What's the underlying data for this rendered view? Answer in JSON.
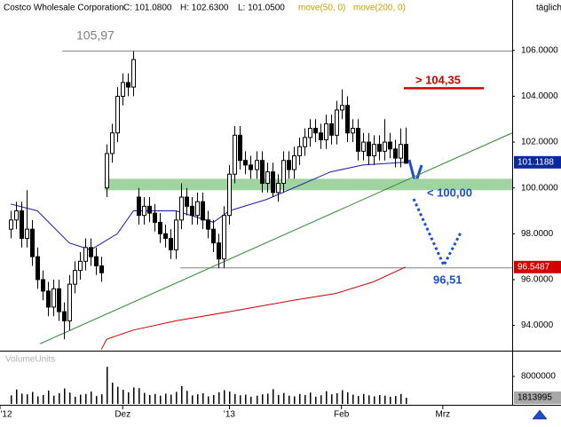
{
  "header": {
    "symbol": "Costco Wholesale Corporation",
    "close": "C: 101.0800",
    "high": "H: 102.6300",
    "low": "L: 101.0500",
    "period": "täglich"
  },
  "chart_data": [
    {
      "type": "candlestick",
      "x": [
        2,
        3,
        4,
        5,
        6,
        7,
        8,
        9,
        10,
        11,
        12,
        13,
        14,
        15,
        16,
        17,
        18,
        19,
        20,
        21,
        22,
        23,
        24,
        25,
        26,
        27,
        28,
        29,
        30,
        31,
        32,
        33,
        34,
        35,
        36,
        37,
        38,
        39,
        40,
        41,
        42,
        43,
        44,
        45,
        46,
        47,
        48,
        49,
        50,
        51,
        52,
        53,
        54,
        55,
        56,
        57,
        58,
        59,
        60,
        61,
        62,
        63,
        64,
        65,
        66,
        67,
        68,
        69,
        70,
        71,
        72,
        73,
        74,
        75,
        76
      ],
      "open": [
        98.2,
        98.6,
        99.0,
        97.8,
        98.2,
        97.0,
        96.0,
        95.5,
        94.8,
        95.6,
        94.6,
        94.2,
        95.8,
        96.4,
        96.8,
        97.4,
        97.0,
        96.6,
        100.0,
        101.5,
        102.4,
        104.0,
        104.6,
        104.4,
        99.6,
        98.8,
        99.2,
        98.9,
        98.5,
        98.0,
        97.8,
        97.3,
        98.6,
        99.6,
        99.2,
        98.8,
        99.4,
        98.6,
        98.2,
        97.6,
        96.9,
        98.8,
        100.6,
        102.3,
        101.2,
        101.0,
        100.8,
        101.2,
        100.2,
        100.7,
        99.8,
        100.2,
        101.2,
        100.8,
        101.4,
        101.8,
        102.2,
        102.6,
        102.4,
        102.1,
        102.8,
        102.3,
        103.4,
        103.6,
        102.4,
        102.6,
        101.6,
        102.0,
        101.4,
        101.9,
        101.6,
        102.0,
        101.7,
        101.3,
        101.9
      ],
      "high": [
        99.0,
        99.4,
        99.4,
        99.9,
        98.6,
        97.4,
        96.4,
        95.9,
        96.0,
        96.0,
        95.0,
        96.2,
        96.8,
        97.2,
        97.8,
        97.8,
        97.4,
        97.0,
        101.9,
        102.8,
        104.4,
        105.0,
        105.0,
        105.97,
        100.0,
        99.6,
        99.6,
        99.3,
        98.9,
        98.4,
        98.2,
        99.0,
        100.2,
        100.0,
        99.6,
        99.8,
        99.8,
        99.0,
        98.6,
        98.0,
        99.2,
        101.0,
        102.7,
        102.7,
        101.6,
        101.4,
        101.6,
        101.6,
        101.1,
        101.1,
        100.6,
        101.6,
        101.6,
        101.8,
        102.2,
        102.6,
        103.0,
        103.0,
        102.8,
        103.2,
        103.2,
        103.8,
        104.3,
        104.0,
        103.0,
        103.0,
        102.4,
        102.4,
        102.3,
        102.3,
        103.0,
        102.4,
        102.1,
        102.6,
        102.63
      ],
      "low": [
        97.8,
        98.2,
        97.4,
        97.4,
        96.6,
        95.6,
        95.1,
        94.4,
        94.4,
        94.2,
        93.4,
        93.8,
        95.4,
        96.0,
        96.4,
        96.6,
        96.2,
        95.9,
        99.6,
        101.1,
        102.0,
        103.6,
        104.0,
        104.0,
        98.4,
        98.4,
        98.5,
        98.1,
        97.6,
        97.4,
        96.9,
        96.9,
        98.2,
        98.8,
        98.4,
        98.4,
        98.2,
        97.8,
        97.2,
        96.5,
        96.5,
        98.4,
        100.2,
        100.8,
        100.6,
        100.4,
        100.4,
        99.8,
        99.8,
        99.6,
        99.4,
        99.8,
        100.4,
        100.4,
        101.0,
        101.4,
        101.8,
        102.0,
        101.7,
        101.7,
        101.9,
        101.9,
        103.0,
        102.0,
        102.0,
        101.2,
        101.2,
        101.0,
        101.0,
        101.2,
        101.2,
        101.3,
        100.9,
        100.9,
        101.05
      ],
      "close": [
        98.6,
        99.0,
        97.8,
        98.2,
        97.0,
        96.0,
        95.5,
        94.8,
        95.6,
        94.6,
        94.2,
        95.8,
        96.4,
        96.8,
        97.4,
        97.0,
        96.6,
        96.3,
        101.5,
        102.4,
        104.0,
        104.6,
        104.4,
        105.6,
        98.8,
        99.2,
        98.9,
        98.5,
        98.0,
        97.8,
        97.3,
        98.6,
        99.6,
        99.2,
        98.8,
        99.4,
        98.6,
        98.2,
        97.6,
        96.9,
        98.8,
        100.6,
        102.3,
        101.2,
        101.0,
        100.8,
        101.2,
        100.2,
        100.7,
        99.8,
        100.2,
        101.2,
        100.8,
        101.4,
        101.8,
        102.2,
        102.6,
        102.4,
        102.1,
        102.8,
        102.3,
        103.4,
        103.6,
        102.4,
        102.6,
        101.6,
        102.0,
        101.4,
        101.9,
        101.6,
        102.0,
        101.7,
        101.3,
        101.9,
        101.08
      ],
      "series": [
        {
          "name": "move(50, 0)",
          "color": "#1a1aa8",
          "x": [
            2,
            7,
            13,
            17,
            22,
            25,
            33,
            40,
            43,
            50,
            55,
            62,
            68,
            76
          ],
          "values": [
            99.3,
            99.0,
            97.6,
            97.3,
            98.0,
            99.0,
            99.0,
            98.5,
            99.0,
            99.5,
            100.0,
            100.7,
            101.0,
            101.1188
          ]
        },
        {
          "name": "move(200, 0)",
          "color": "#cc0000",
          "x": [
            19,
            20,
            25,
            33,
            43,
            55,
            63,
            70,
            76
          ],
          "values": [
            92.95,
            93.4,
            93.8,
            94.2,
            94.6,
            95.1,
            95.4,
            95.9,
            96.5487
          ]
        }
      ],
      "trendline": {
        "color": "#2e8b2e",
        "x": [
          7.5,
          96
        ],
        "values": [
          93.2,
          102.4
        ]
      },
      "levels": [
        {
          "value": 105.97,
          "label": "105,97",
          "color": "#808080",
          "x_from": 11.7
        },
        {
          "value": 104.35,
          "label": "> 104,35",
          "color": "#d40000",
          "x_from": 75.7,
          "x_to": 90.7
        },
        {
          "value": 96.51,
          "label": "96,51",
          "color": "#808080",
          "x_from": 33.8
        }
      ],
      "zone": {
        "range": [
          99.9,
          100.4
        ],
        "label": "< 100,00",
        "color": "#9fd39f",
        "x_from": 19.6
      },
      "xlim": [
        0,
        96
      ],
      "ylim": [
        92.9,
        108.2
      ],
      "xticks": [
        {
          "value": 0,
          "label": "'12"
        },
        {
          "value": 23,
          "label": "Dez"
        },
        {
          "value": 43,
          "label": "'13"
        },
        {
          "value": 64,
          "label": "Feb"
        },
        {
          "value": 83,
          "label": "Mrz"
        }
      ],
      "yticks": [
        {
          "value": 94,
          "label": "94.0000"
        },
        {
          "value": 96,
          "label": "96.0000"
        },
        {
          "value": 98,
          "label": "98.0000"
        },
        {
          "value": 100,
          "label": "100.0000"
        },
        {
          "value": 102,
          "label": "102.0000"
        },
        {
          "value": 104,
          "label": "104.0000"
        },
        {
          "value": 106,
          "label": "106.0000"
        }
      ]
    },
    {
      "type": "bar",
      "title": "VolumeUnits",
      "color": "#000000",
      "x": [
        2,
        3,
        4,
        5,
        6,
        7,
        8,
        9,
        10,
        11,
        12,
        13,
        14,
        15,
        16,
        17,
        18,
        19,
        20,
        21,
        22,
        23,
        24,
        25,
        26,
        27,
        28,
        29,
        30,
        31,
        32,
        33,
        34,
        35,
        36,
        37,
        38,
        39,
        40,
        41,
        42,
        43,
        44,
        45,
        46,
        47,
        48,
        49,
        50,
        51,
        52,
        53,
        54,
        55,
        56,
        57,
        58,
        59,
        60,
        61,
        62,
        63,
        64,
        65,
        66,
        67,
        68,
        69,
        70,
        71,
        72,
        73,
        74,
        75,
        76
      ],
      "values": [
        2500000,
        4200000,
        3000000,
        2800000,
        3500000,
        2200000,
        2600000,
        3900000,
        2400000,
        3100000,
        4500000,
        3300000,
        2100000,
        2700000,
        2900000,
        3600000,
        2300000,
        2800000,
        10800000,
        6200000,
        5000000,
        4100000,
        3400000,
        4800000,
        4600000,
        3200000,
        2600000,
        2900000,
        2400000,
        3000000,
        2700000,
        3500000,
        5200000,
        3800000,
        2500000,
        2800000,
        3100000,
        2200000,
        2600000,
        3400000,
        4000000,
        3600000,
        2900000,
        2500000,
        2700000,
        2100000,
        2400000,
        2800000,
        3000000,
        4300000,
        2600000,
        3200000,
        2400000,
        2200000,
        2900000,
        2600000,
        3300000,
        2100000,
        2500000,
        3700000,
        2800000,
        3100000,
        4000000,
        3400000,
        2700000,
        2300000,
        2900000,
        2500000,
        2200000,
        2600000,
        2400000,
        2100000,
        2300000,
        2900000,
        1813995
      ],
      "ylim": [
        0,
        15000000
      ],
      "yticks": [
        8000000
      ]
    }
  ]
}
